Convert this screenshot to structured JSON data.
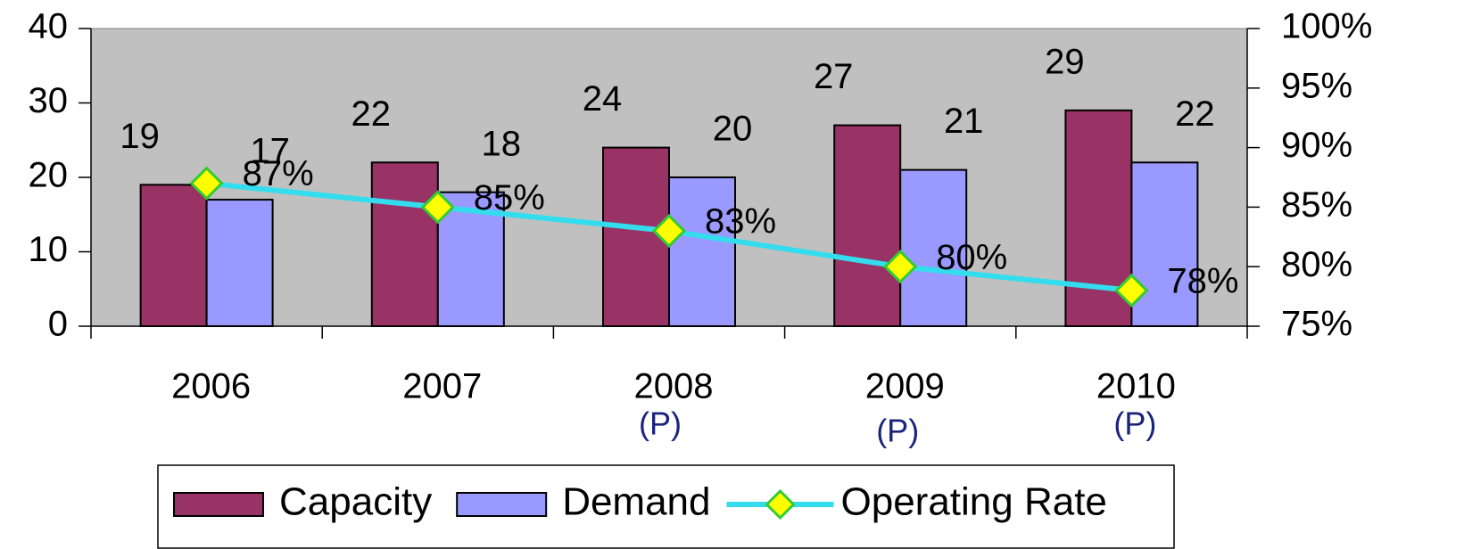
{
  "chart_data": {
    "type": "bar_line",
    "categories": [
      "2006",
      "2007",
      "2008",
      "2009",
      "2010"
    ],
    "category_notes": [
      null,
      null,
      "(P)",
      "(P)",
      "(P)"
    ],
    "series": [
      {
        "name": "Capacity",
        "type": "bar",
        "color": "#993366",
        "values": [
          19,
          22,
          24,
          27,
          29
        ]
      },
      {
        "name": "Demand",
        "type": "bar",
        "color": "#9999ff",
        "values": [
          17,
          18,
          20,
          21,
          22
        ]
      },
      {
        "name": "Operating Rate",
        "type": "line",
        "axis": "y2",
        "color": "#33ddee",
        "marker_color": "#ffff00",
        "values": [
          87,
          85,
          83,
          80,
          78
        ],
        "value_labels": [
          "87%",
          "85%",
          "83%",
          "80%",
          "78%"
        ]
      }
    ],
    "ylim": [
      0,
      40
    ],
    "yticks": [
      0,
      10,
      20,
      30,
      40
    ],
    "y2lim": [
      75,
      100
    ],
    "y2ticks": [
      {
        "value": 75,
        "label": "75%"
      },
      {
        "value": 80,
        "label": "80%"
      },
      {
        "value": 85,
        "label": "85%"
      },
      {
        "value": 90,
        "label": "90%"
      },
      {
        "value": 95,
        "label": "95%"
      },
      {
        "value": 100,
        "label": "100%"
      }
    ],
    "legend": "bottom"
  }
}
